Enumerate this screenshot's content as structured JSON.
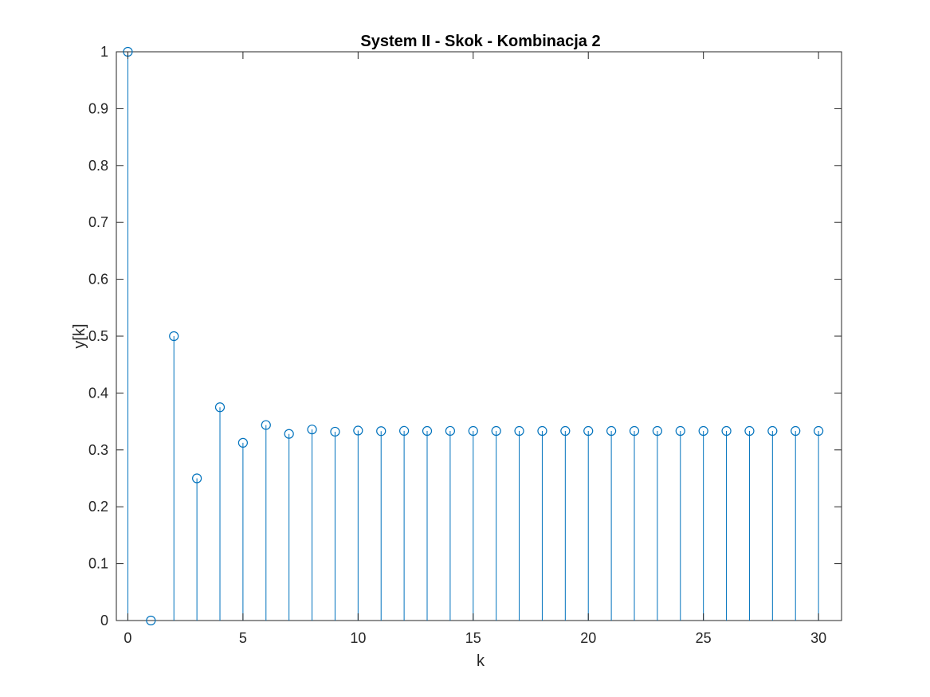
{
  "chart_data": {
    "type": "stem",
    "title": "System II - Skok - Kombinacja 2",
    "xlabel": "k",
    "ylabel": "y[k]",
    "xlim": [
      -0.5,
      31
    ],
    "ylim": [
      0,
      1
    ],
    "grid": false,
    "x": [
      0,
      1,
      2,
      3,
      4,
      5,
      6,
      7,
      8,
      9,
      10,
      11,
      12,
      13,
      14,
      15,
      16,
      17,
      18,
      19,
      20,
      21,
      22,
      23,
      24,
      25,
      26,
      27,
      28,
      29,
      30
    ],
    "y": [
      1,
      0,
      0.5,
      0.25,
      0.375,
      0.3125,
      0.34375,
      0.328125,
      0.3359,
      0.332,
      0.334,
      0.333,
      0.3335,
      0.3333,
      0.3334,
      0.3333,
      0.3333,
      0.3333,
      0.3333,
      0.3333,
      0.3333,
      0.3333,
      0.3333,
      0.3333,
      0.3333,
      0.3333,
      0.3333,
      0.3333,
      0.3333,
      0.3333,
      0.3333
    ],
    "x_ticks": [
      "0",
      "5",
      "10",
      "15",
      "20",
      "25",
      "30"
    ],
    "y_ticks": [
      "0",
      "0.1",
      "0.2",
      "0.3",
      "0.4",
      "0.5",
      "0.6",
      "0.7",
      "0.8",
      "0.9",
      "1"
    ],
    "series_color": "#0072BD"
  }
}
